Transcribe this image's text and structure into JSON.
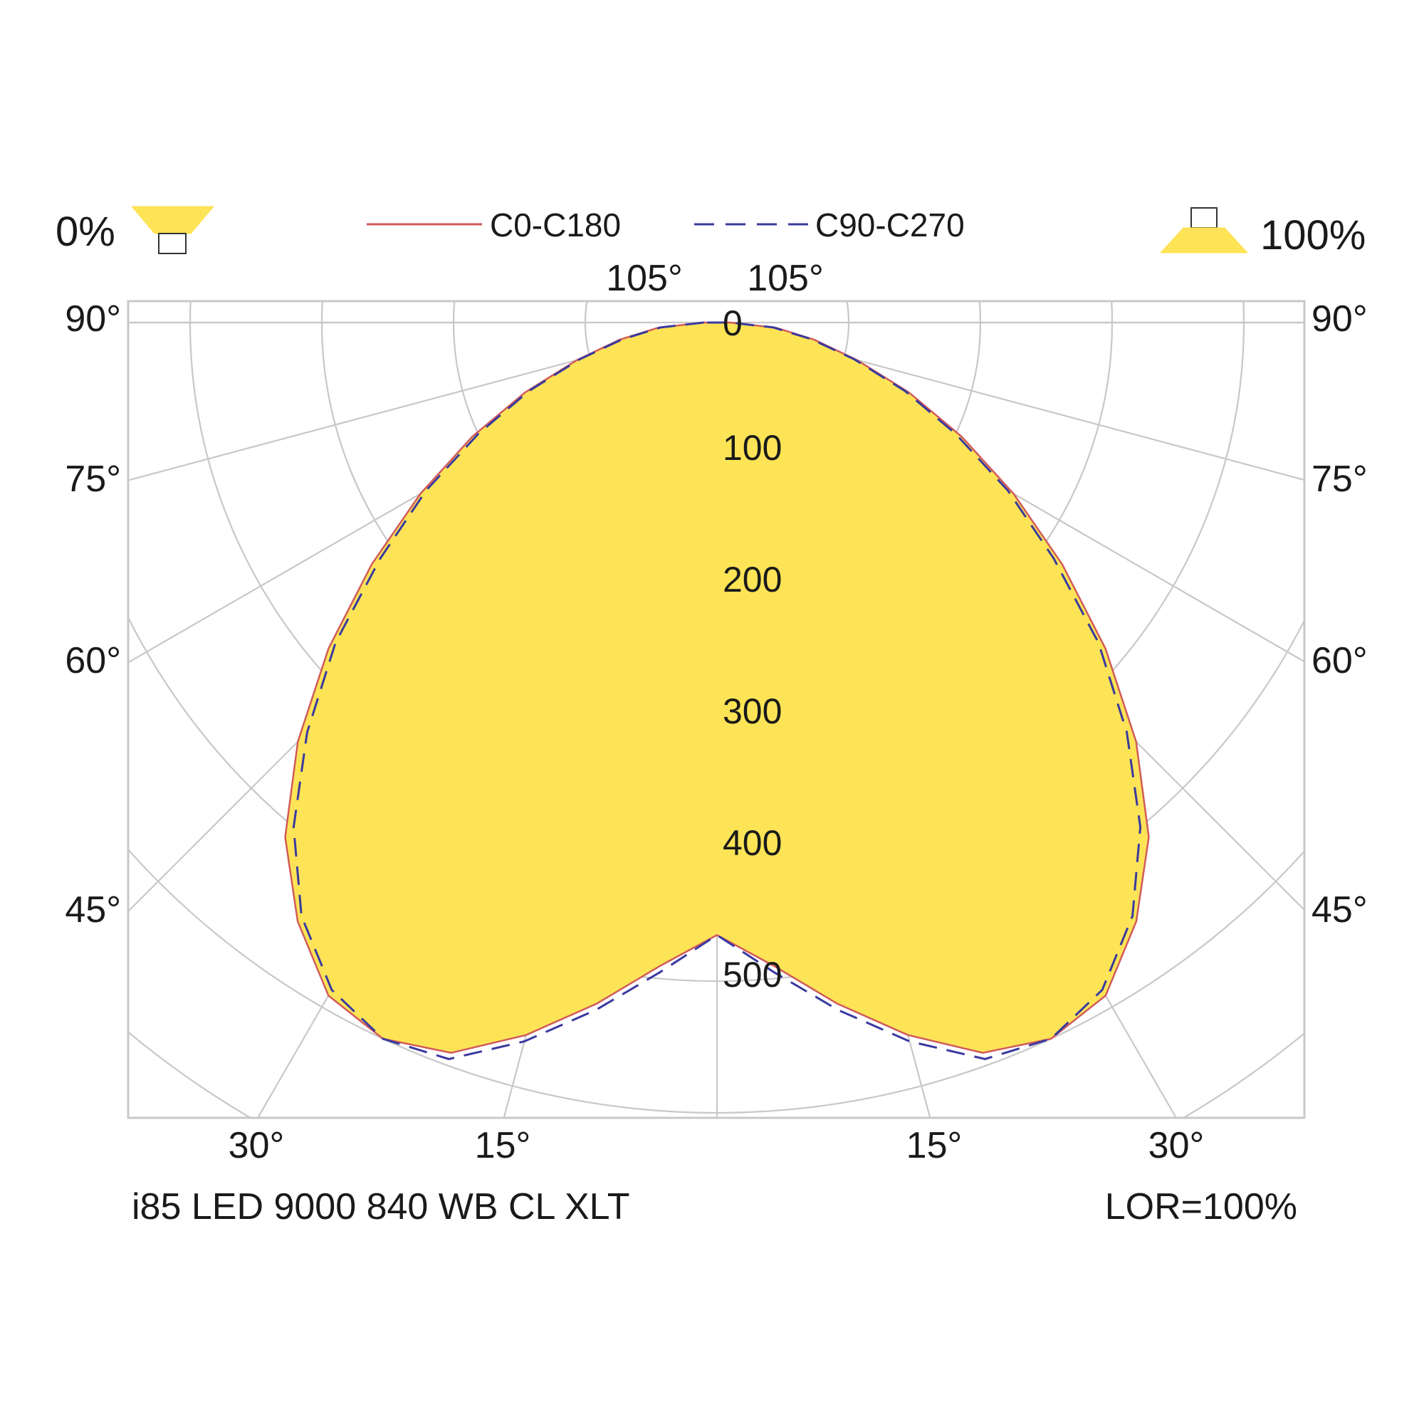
{
  "chart_data": {
    "type": "polar",
    "subtype": "luminous-intensity-distribution",
    "product": "i85 LED 9000 840 WB CL XLT",
    "lor": "LOR=100%",
    "downward_percent": "0%",
    "upward_percent": "100%",
    "legend": [
      {
        "name": "C0-C180",
        "style": "solid",
        "color": "#d05a5a"
      },
      {
        "name": "C90-C270",
        "style": "dashed",
        "color": "#3a3aa0"
      }
    ],
    "fill_color": "#fde456",
    "grid_color": "#c8c8c8",
    "radial_ticks": [
      0,
      100,
      200,
      300,
      400,
      500
    ],
    "radial_tick_labels": [
      "0",
      "100",
      "200",
      "300",
      "400",
      "500"
    ],
    "r_max": 600,
    "angle_ticks": [
      0,
      15,
      30,
      45,
      60,
      75,
      90,
      105
    ],
    "angle_labels": {
      "top_left": "105°",
      "top_right": "105°",
      "left": [
        "90°",
        "75°",
        "60°",
        "45°"
      ],
      "right": [
        "90°",
        "75°",
        "60°",
        "45°"
      ],
      "bottom": [
        "30°",
        "15°",
        "15°",
        "30°"
      ]
    },
    "units_note": "angle in degrees from nadir (0° = straight up in this rendering); intensity in candela per kilolumen (estimated)",
    "series": [
      {
        "name": "C0-C180",
        "angles": [
          0,
          5,
          10,
          15,
          20,
          25,
          30,
          35,
          40,
          45,
          50,
          55,
          60,
          65,
          70,
          75,
          80,
          85,
          90
        ],
        "values": [
          465,
          490,
          525,
          560,
          590,
          600,
          590,
          555,
          510,
          450,
          385,
          320,
          260,
          205,
          155,
          110,
          75,
          45,
          10
        ]
      },
      {
        "name": "C90-C270",
        "angles": [
          0,
          5,
          10,
          15,
          20,
          25,
          30,
          35,
          40,
          45,
          50,
          55,
          60,
          65,
          70,
          75,
          80,
          85,
          90
        ],
        "values": [
          465,
          495,
          530,
          565,
          595,
          600,
          585,
          550,
          500,
          440,
          378,
          312,
          255,
          200,
          152,
          108,
          73,
          43,
          10
        ]
      }
    ]
  }
}
